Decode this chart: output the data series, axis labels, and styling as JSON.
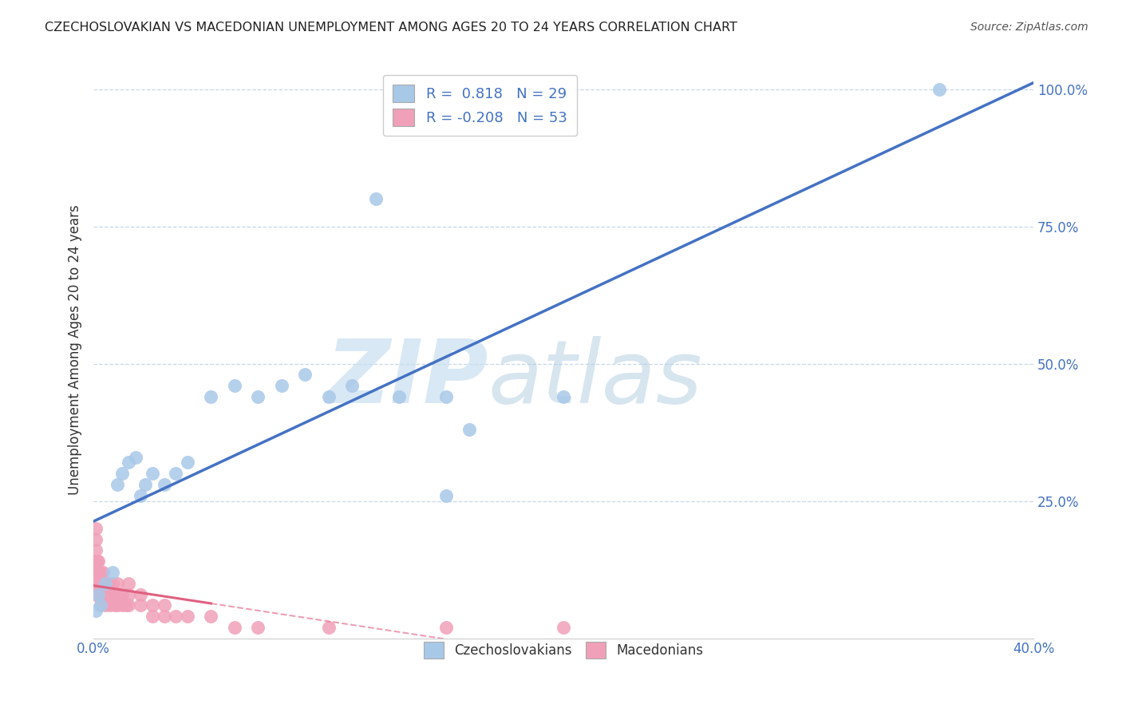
{
  "title": "CZECHOSLOVAKIAN VS MACEDONIAN UNEMPLOYMENT AMONG AGES 20 TO 24 YEARS CORRELATION CHART",
  "source": "Source: ZipAtlas.com",
  "ylabel": "Unemployment Among Ages 20 to 24 years",
  "xlim": [
    0.0,
    0.4
  ],
  "ylim": [
    0.0,
    1.05
  ],
  "xticks": [
    0.0,
    0.1,
    0.2,
    0.3,
    0.4
  ],
  "xtick_labels": [
    "0.0%",
    "",
    "",
    "",
    "40.0%"
  ],
  "yticks": [
    0.25,
    0.5,
    0.75,
    1.0
  ],
  "ytick_labels": [
    "25.0%",
    "50.0%",
    "75.0%",
    "100.0%"
  ],
  "grid_color": "#c8d8e8",
  "background_color": "#ffffff",
  "watermark_zip": "ZIP",
  "watermark_atlas": "atlas",
  "czechoslovakian_color": "#a8c8e8",
  "macedonian_color": "#f0a0b8",
  "line_blue": "#4472c4",
  "line_pink": "#e06080",
  "legend_r1_label": "R =  0.818   N = 29",
  "legend_r2_label": "R = -0.208   N = 53",
  "czechoslovakian_points": [
    [
      0.001,
      0.05
    ],
    [
      0.002,
      0.08
    ],
    [
      0.003,
      0.06
    ],
    [
      0.005,
      0.1
    ],
    [
      0.008,
      0.12
    ],
    [
      0.01,
      0.28
    ],
    [
      0.012,
      0.3
    ],
    [
      0.015,
      0.32
    ],
    [
      0.018,
      0.33
    ],
    [
      0.02,
      0.26
    ],
    [
      0.022,
      0.28
    ],
    [
      0.025,
      0.3
    ],
    [
      0.03,
      0.28
    ],
    [
      0.035,
      0.3
    ],
    [
      0.04,
      0.32
    ],
    [
      0.05,
      0.44
    ],
    [
      0.06,
      0.46
    ],
    [
      0.07,
      0.44
    ],
    [
      0.08,
      0.46
    ],
    [
      0.09,
      0.48
    ],
    [
      0.1,
      0.44
    ],
    [
      0.11,
      0.46
    ],
    [
      0.12,
      0.8
    ],
    [
      0.13,
      0.44
    ],
    [
      0.15,
      0.44
    ],
    [
      0.16,
      0.38
    ],
    [
      0.2,
      0.44
    ],
    [
      0.15,
      0.26
    ],
    [
      0.36,
      1.0
    ]
  ],
  "macedonian_points": [
    [
      0.0005,
      0.14
    ],
    [
      0.001,
      0.12
    ],
    [
      0.001,
      0.16
    ],
    [
      0.001,
      0.18
    ],
    [
      0.001,
      0.2
    ],
    [
      0.001,
      0.1
    ],
    [
      0.001,
      0.08
    ],
    [
      0.0015,
      0.12
    ],
    [
      0.0015,
      0.14
    ],
    [
      0.002,
      0.1
    ],
    [
      0.002,
      0.12
    ],
    [
      0.002,
      0.14
    ],
    [
      0.002,
      0.08
    ],
    [
      0.003,
      0.1
    ],
    [
      0.003,
      0.12
    ],
    [
      0.003,
      0.08
    ],
    [
      0.003,
      0.06
    ],
    [
      0.004,
      0.1
    ],
    [
      0.004,
      0.08
    ],
    [
      0.004,
      0.12
    ],
    [
      0.005,
      0.1
    ],
    [
      0.005,
      0.08
    ],
    [
      0.005,
      0.06
    ],
    [
      0.006,
      0.08
    ],
    [
      0.006,
      0.1
    ],
    [
      0.007,
      0.08
    ],
    [
      0.007,
      0.06
    ],
    [
      0.008,
      0.08
    ],
    [
      0.008,
      0.1
    ],
    [
      0.009,
      0.06
    ],
    [
      0.01,
      0.08
    ],
    [
      0.01,
      0.06
    ],
    [
      0.01,
      0.1
    ],
    [
      0.012,
      0.06
    ],
    [
      0.012,
      0.08
    ],
    [
      0.014,
      0.06
    ],
    [
      0.015,
      0.06
    ],
    [
      0.015,
      0.08
    ],
    [
      0.015,
      0.1
    ],
    [
      0.02,
      0.06
    ],
    [
      0.02,
      0.08
    ],
    [
      0.025,
      0.06
    ],
    [
      0.025,
      0.04
    ],
    [
      0.03,
      0.06
    ],
    [
      0.03,
      0.04
    ],
    [
      0.035,
      0.04
    ],
    [
      0.04,
      0.04
    ],
    [
      0.05,
      0.04
    ],
    [
      0.06,
      0.02
    ],
    [
      0.07,
      0.02
    ],
    [
      0.1,
      0.02
    ],
    [
      0.15,
      0.02
    ],
    [
      0.2,
      0.02
    ]
  ]
}
